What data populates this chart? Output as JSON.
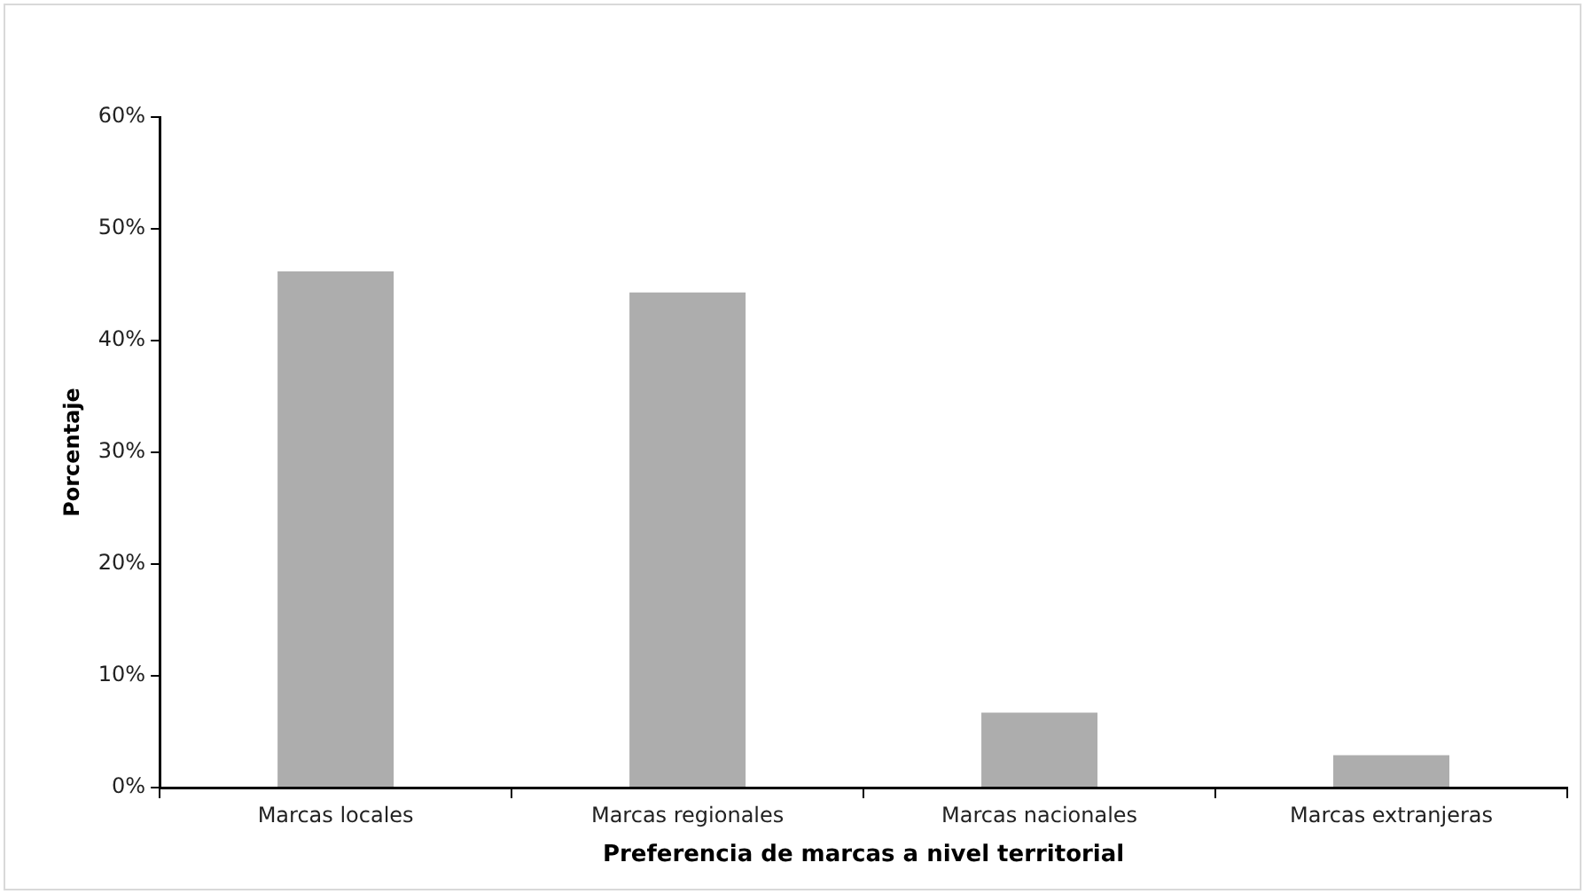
{
  "chart_data": {
    "type": "bar",
    "xlabel": "Preferencia de marcas a nivel territorial",
    "ylabel": "Porcentaje",
    "categories": [
      "Marcas locales",
      "Marcas regionales",
      "Marcas nacionales",
      "Marcas extranjeras"
    ],
    "values": [
      46.2,
      44.3,
      6.7,
      2.9
    ],
    "color": "#adadad",
    "ylim": [
      0,
      60
    ],
    "yticks": [
      {
        "value": 0,
        "label": "0%"
      },
      {
        "value": 10,
        "label": "10%"
      },
      {
        "value": 20,
        "label": "20%"
      },
      {
        "value": 30,
        "label": "30%"
      },
      {
        "value": 40,
        "label": "40%"
      },
      {
        "value": 50,
        "label": "50%"
      },
      {
        "value": 60,
        "label": "60%"
      }
    ],
    "grid": false,
    "legend": false
  }
}
